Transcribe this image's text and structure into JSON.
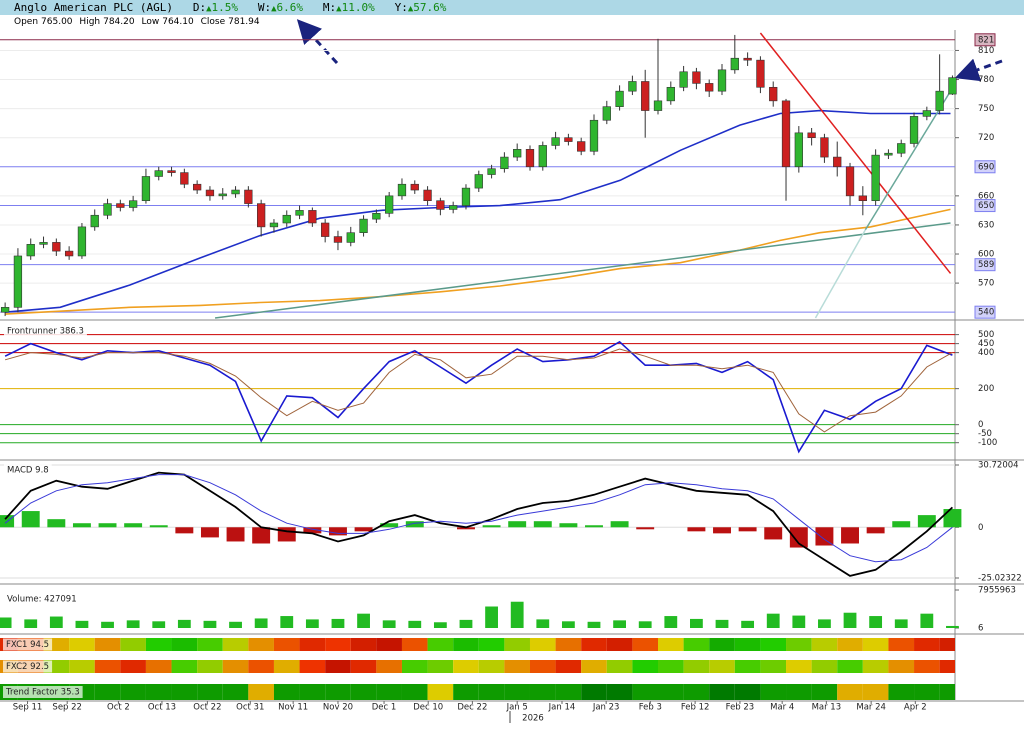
{
  "header": {
    "title": "Anglo American PLC (AGL)",
    "changes": [
      {
        "label": "D:",
        "value": "1.5%"
      },
      {
        "label": "W:",
        "value": "6.6%"
      },
      {
        "label": "M:",
        "value": "11.0%"
      },
      {
        "label": "Y:",
        "value": "57.6%"
      }
    ],
    "ohlc": [
      {
        "label": "Open",
        "value": "765.00"
      },
      {
        "label": "High",
        "value": "784.20"
      },
      {
        "label": "Low",
        "value": "764.10"
      },
      {
        "label": "Close",
        "value": "781.94"
      }
    ]
  },
  "chart_data": [
    {
      "type": "candlestick",
      "x": [
        0,
        2,
        4,
        6,
        8,
        10,
        12,
        14,
        16,
        18,
        20,
        22,
        24,
        26,
        28,
        30,
        32,
        34,
        36,
        38,
        40,
        42,
        44,
        46,
        48,
        50,
        52,
        54,
        56,
        58,
        60,
        62,
        64,
        66,
        68,
        70,
        72,
        74,
        76,
        78,
        80,
        82,
        84,
        86,
        88,
        90,
        92,
        94,
        96,
        98,
        100,
        102,
        104,
        106,
        108,
        110,
        112,
        114,
        116,
        118,
        120,
        122,
        124,
        126,
        128,
        130,
        132,
        134,
        136,
        138,
        140,
        142,
        144,
        146,
        148
      ],
      "open": [
        540,
        545,
        598,
        610,
        612,
        603,
        598,
        628,
        640,
        652,
        648,
        655,
        680,
        686,
        684,
        672,
        666,
        660,
        662,
        666,
        652,
        628,
        632,
        640,
        645,
        632,
        618,
        612,
        622,
        636,
        642,
        660,
        672,
        666,
        655,
        646,
        650,
        668,
        682,
        688,
        700,
        708,
        690,
        712,
        720,
        716,
        706,
        738,
        752,
        768,
        778,
        748,
        758,
        772,
        788,
        776,
        768,
        790,
        802,
        800,
        772,
        758,
        690,
        725,
        720,
        700,
        690,
        660,
        655,
        702,
        704,
        714,
        742,
        748,
        765
      ],
      "high": [
        550,
        606,
        616,
        618,
        616,
        608,
        632,
        646,
        657,
        656,
        660,
        688,
        690,
        690,
        688,
        676,
        670,
        668,
        670,
        670,
        656,
        636,
        645,
        650,
        648,
        636,
        624,
        628,
        640,
        646,
        664,
        678,
        676,
        670,
        658,
        654,
        672,
        686,
        692,
        705,
        714,
        712,
        716,
        726,
        724,
        720,
        744,
        758,
        774,
        784,
        790,
        822,
        778,
        794,
        792,
        780,
        796,
        826,
        808,
        804,
        778,
        760,
        732,
        730,
        724,
        716,
        694,
        670,
        708,
        708,
        718,
        746,
        752,
        806,
        784.2
      ],
      "low": [
        536,
        540,
        594,
        606,
        598,
        594,
        595,
        624,
        636,
        644,
        644,
        652,
        676,
        680,
        668,
        662,
        655,
        656,
        658,
        648,
        618,
        622,
        628,
        636,
        628,
        612,
        604,
        608,
        618,
        632,
        638,
        656,
        662,
        650,
        640,
        642,
        646,
        664,
        678,
        684,
        696,
        686,
        686,
        708,
        712,
        702,
        702,
        734,
        748,
        764,
        720,
        744,
        754,
        768,
        770,
        762,
        764,
        786,
        794,
        766,
        752,
        655,
        684,
        712,
        694,
        680,
        650,
        640,
        650,
        698,
        700,
        710,
        738,
        744,
        764.1
      ],
      "close": [
        545,
        598,
        610,
        612,
        603,
        598,
        628,
        640,
        652,
        648,
        655,
        680,
        686,
        684,
        672,
        666,
        660,
        662,
        666,
        652,
        628,
        632,
        640,
        645,
        632,
        618,
        612,
        622,
        636,
        642,
        660,
        672,
        666,
        655,
        646,
        650,
        668,
        682,
        688,
        700,
        708,
        690,
        712,
        720,
        716,
        706,
        738,
        752,
        768,
        778,
        748,
        758,
        772,
        788,
        776,
        768,
        790,
        802,
        800,
        772,
        758,
        690,
        725,
        720,
        700,
        690,
        660,
        655,
        702,
        704,
        714,
        742,
        748,
        768,
        781.94
      ],
      "up_color": "#2fb52f",
      "down_color": "#cc2020",
      "ylim": [
        534,
        828
      ],
      "yticks": [
        570,
        600,
        630,
        660,
        720,
        750,
        780,
        810
      ],
      "grid": true,
      "xlim": [
        -0.8,
        148.4
      ],
      "xticks": [
        {
          "value": 3.5,
          "label": "Sep 11"
        },
        {
          "value": 9.7,
          "label": "Sep 22"
        },
        {
          "value": 17.7,
          "label": "Oct 2"
        },
        {
          "value": 24.5,
          "label": "Oct 13"
        },
        {
          "value": 31.6,
          "label": "Oct 22"
        },
        {
          "value": 38.3,
          "label": "Oct 31"
        },
        {
          "value": 45,
          "label": "Nov 11"
        },
        {
          "value": 52,
          "label": "Nov 20"
        },
        {
          "value": 59.2,
          "label": "Dec 1"
        },
        {
          "value": 66.1,
          "label": "Dec 10"
        },
        {
          "value": 73,
          "label": "Dec 22"
        },
        {
          "value": 80,
          "label": "Jan 5"
        },
        {
          "value": 87,
          "label": "Jan 14"
        },
        {
          "value": 93.9,
          "label": "Jan 23"
        },
        {
          "value": 100.8,
          "label": "Feb 3"
        },
        {
          "value": 107.8,
          "label": "Feb 12"
        },
        {
          "value": 114.8,
          "label": "Feb 23"
        },
        {
          "value": 121.4,
          "label": "Mar 4"
        },
        {
          "value": 128.3,
          "label": "Mar 13"
        },
        {
          "value": 135.3,
          "label": "Mar 24"
        },
        {
          "value": 142.2,
          "label": "Apr 2"
        }
      ],
      "year_label": "2026",
      "hlines": [
        {
          "value": 821,
          "color": "#8b2a4a"
        },
        {
          "value": 690,
          "color": "#7d7ff0"
        },
        {
          "value": 650,
          "color": "#7d7ff0"
        },
        {
          "value": 589,
          "color": "#7d7ff0"
        },
        {
          "value": 540,
          "color": "#7d7ff0"
        }
      ],
      "series": [
        {
          "color": "#1f2fc8",
          "x": [
            0,
            8.6,
            19.5,
            30.5,
            39.8,
            49.2,
            58.6,
            68,
            77.3,
            86.7,
            96.1,
            105.5,
            114.8,
            121.1,
            127.3,
            135.2,
            147.7
          ],
          "values": [
            540,
            545,
            568,
            596,
            619,
            637,
            645,
            648,
            650,
            656,
            676,
            707,
            733,
            745,
            748,
            745,
            745
          ]
        },
        {
          "color": "#f0a020",
          "x": [
            0,
            8.6,
            19.5,
            30.5,
            39.8,
            49.2,
            58.6,
            68,
            77.3,
            86.7,
            96.1,
            105.5,
            114.8,
            121.1,
            127.3,
            135.2,
            147.7
          ],
          "values": [
            538,
            541,
            545,
            547,
            550,
            552,
            556,
            561,
            567,
            575,
            585,
            591,
            604,
            614,
            622,
            628,
            646
          ]
        }
      ],
      "trendlines": [
        {
          "color": "#5a9a8a",
          "x": [
            32.8,
            147.7
          ],
          "values": [
            534,
            632
          ]
        },
        {
          "color": "#e02020",
          "x": [
            118,
            147.7
          ],
          "values": [
            828,
            580
          ]
        },
        {
          "color": "#6aa89a",
          "x": [
            134.4,
            147.7
          ],
          "values": [
            625,
            768
          ]
        },
        {
          "color": "#b8dcd8",
          "x": [
            126.6,
            134.4
          ],
          "values": [
            534,
            625
          ]
        }
      ]
    },
    {
      "type": "line",
      "title": "Frontrunner 386.3",
      "x": [
        0,
        4,
        8,
        12,
        16,
        20,
        24,
        28,
        32,
        36,
        40,
        44,
        48,
        52,
        56,
        60,
        64,
        68,
        72,
        76,
        80,
        84,
        88,
        92,
        96,
        100,
        104,
        108,
        112,
        116,
        120,
        124,
        128,
        132,
        136,
        140,
        144,
        148
      ],
      "ylim": [
        -185,
        570
      ],
      "yticks": [
        500,
        450,
        400,
        200,
        0,
        -50,
        -100
      ],
      "ytick_colors": [
        "#cc0000",
        "#cc0000",
        "#cc0000",
        "#e0b000",
        "#22aa22",
        "#22aa22",
        "#22aa22"
      ],
      "series": [
        {
          "color": "#1a1ad0",
          "values": [
            380,
            450,
            400,
            360,
            410,
            400,
            410,
            370,
            330,
            240,
            -90,
            160,
            150,
            40,
            200,
            350,
            410,
            320,
            230,
            330,
            420,
            350,
            360,
            380,
            460,
            330,
            330,
            340,
            290,
            350,
            250,
            -150,
            80,
            30,
            130,
            200,
            440,
            386.3
          ]
        },
        {
          "color": "#a0643c",
          "values": [
            360,
            400,
            390,
            370,
            400,
            400,
            400,
            380,
            340,
            270,
            150,
            50,
            130,
            80,
            120,
            290,
            390,
            360,
            260,
            280,
            380,
            380,
            360,
            370,
            420,
            380,
            330,
            330,
            310,
            330,
            290,
            60,
            -40,
            50,
            70,
            160,
            320,
            400
          ]
        }
      ]
    },
    {
      "type": "macd",
      "title": "MACD 9.8",
      "x": [
        0,
        4,
        8,
        12,
        16,
        20,
        24,
        28,
        32,
        36,
        40,
        44,
        48,
        52,
        56,
        60,
        64,
        68,
        72,
        76,
        80,
        84,
        88,
        92,
        96,
        100,
        104,
        108,
        112,
        116,
        120,
        124,
        128,
        132,
        136,
        140,
        144,
        148
      ],
      "ylim": [
        -27,
        32.7
      ],
      "yticks": [
        30.72004,
        0,
        -25.02322
      ],
      "up_color": "#22bb22",
      "down_color": "#bb1111",
      "histogram": [
        6,
        8,
        4,
        2,
        2,
        2,
        1,
        -3,
        -5,
        -7,
        -8,
        -7,
        -3,
        -4,
        -2,
        2,
        3,
        0,
        -1,
        1,
        3,
        3,
        2,
        1,
        3,
        -1,
        0,
        -2,
        -3,
        -2,
        -6,
        -10,
        -9,
        -8,
        -3,
        3,
        6,
        9
      ],
      "series": [
        {
          "color": "#000000",
          "values": [
            4,
            18,
            23,
            20,
            19,
            23,
            27,
            26,
            18,
            10,
            0,
            -2,
            -3,
            -7,
            -4,
            3,
            6,
            2,
            0,
            4,
            9,
            12,
            13,
            16,
            20,
            24,
            21,
            18,
            17,
            16,
            8,
            -8,
            -16,
            -24,
            -21,
            -12,
            -2,
            9.8
          ]
        },
        {
          "color": "#3a3ad8",
          "values": [
            2,
            12,
            18,
            21,
            22,
            24,
            26,
            26,
            22,
            16,
            8,
            2,
            -1,
            -3,
            -3,
            -1,
            2,
            3,
            2,
            3,
            6,
            8,
            10,
            12,
            16,
            21,
            22,
            21,
            19,
            18,
            14,
            4,
            -6,
            -14,
            -17,
            -16,
            -10,
            0
          ]
        }
      ]
    },
    {
      "type": "bar",
      "title": "Volume: 427091",
      "color": "#22bb22",
      "x": [
        0,
        4,
        8,
        12,
        16,
        20,
        24,
        28,
        32,
        36,
        40,
        44,
        48,
        52,
        56,
        60,
        64,
        68,
        72,
        76,
        80,
        84,
        88,
        92,
        96,
        100,
        104,
        108,
        112,
        116,
        120,
        124,
        128,
        132,
        136,
        140,
        144,
        148
      ],
      "values": [
        2200000,
        1800000,
        2400000,
        1500000,
        1300000,
        1600000,
        1400000,
        1700000,
        1500000,
        1300000,
        2000000,
        2500000,
        1800000,
        1900000,
        3000000,
        1600000,
        1500000,
        1200000,
        1700000,
        4500000,
        5500000,
        1800000,
        1400000,
        1300000,
        1600000,
        1400000,
        2500000,
        1900000,
        1700000,
        1500000,
        3000000,
        2600000,
        1800000,
        3200000,
        2500000,
        1800000,
        3000000,
        427091
      ],
      "ylim": [
        6,
        7955963
      ],
      "yticks": [
        7955963,
        6
      ]
    },
    {
      "type": "heatmap",
      "x": [
        0,
        4,
        8,
        12,
        16,
        20,
        24,
        28,
        32,
        36,
        40,
        44,
        48,
        52,
        56,
        60,
        64,
        68,
        72,
        76,
        80,
        84,
        88,
        92,
        96,
        100,
        104,
        108,
        112,
        116,
        120,
        124,
        128,
        132,
        136,
        140,
        144,
        148
      ],
      "color_range": [
        0,
        100
      ],
      "color_scale": [
        "#aa0000",
        "#ee3300",
        "#ddcc00",
        "#22cc00",
        "#007a00"
      ],
      "rows": [
        {
          "name": "FXC1 94.5",
          "values": [
            20,
            30,
            45,
            50,
            40,
            60,
            75,
            80,
            70,
            55,
            40,
            30,
            20,
            25,
            15,
            10,
            30,
            70,
            80,
            75,
            60,
            50,
            35,
            20,
            15,
            30,
            50,
            70,
            85,
            80,
            75,
            65,
            55,
            45,
            50,
            30,
            20,
            15
          ]
        },
        {
          "name": "FXC2 92.5",
          "values": [
            40,
            35,
            60,
            55,
            30,
            20,
            35,
            70,
            60,
            40,
            30,
            45,
            25,
            10,
            20,
            35,
            70,
            65,
            50,
            55,
            40,
            30,
            20,
            45,
            60,
            75,
            70,
            60,
            55,
            70,
            65,
            50,
            60,
            70,
            55,
            40,
            30,
            20
          ]
        },
        {
          "name": "Trend Factor 35.3",
          "values": [
            90,
            90,
            90,
            90,
            90,
            90,
            90,
            90,
            90,
            90,
            45,
            90,
            90,
            90,
            90,
            90,
            90,
            50,
            90,
            90,
            90,
            90,
            90,
            100,
            100,
            90,
            90,
            90,
            100,
            100,
            90,
            90,
            90,
            45,
            45,
            90,
            90,
            90
          ]
        }
      ]
    }
  ]
}
